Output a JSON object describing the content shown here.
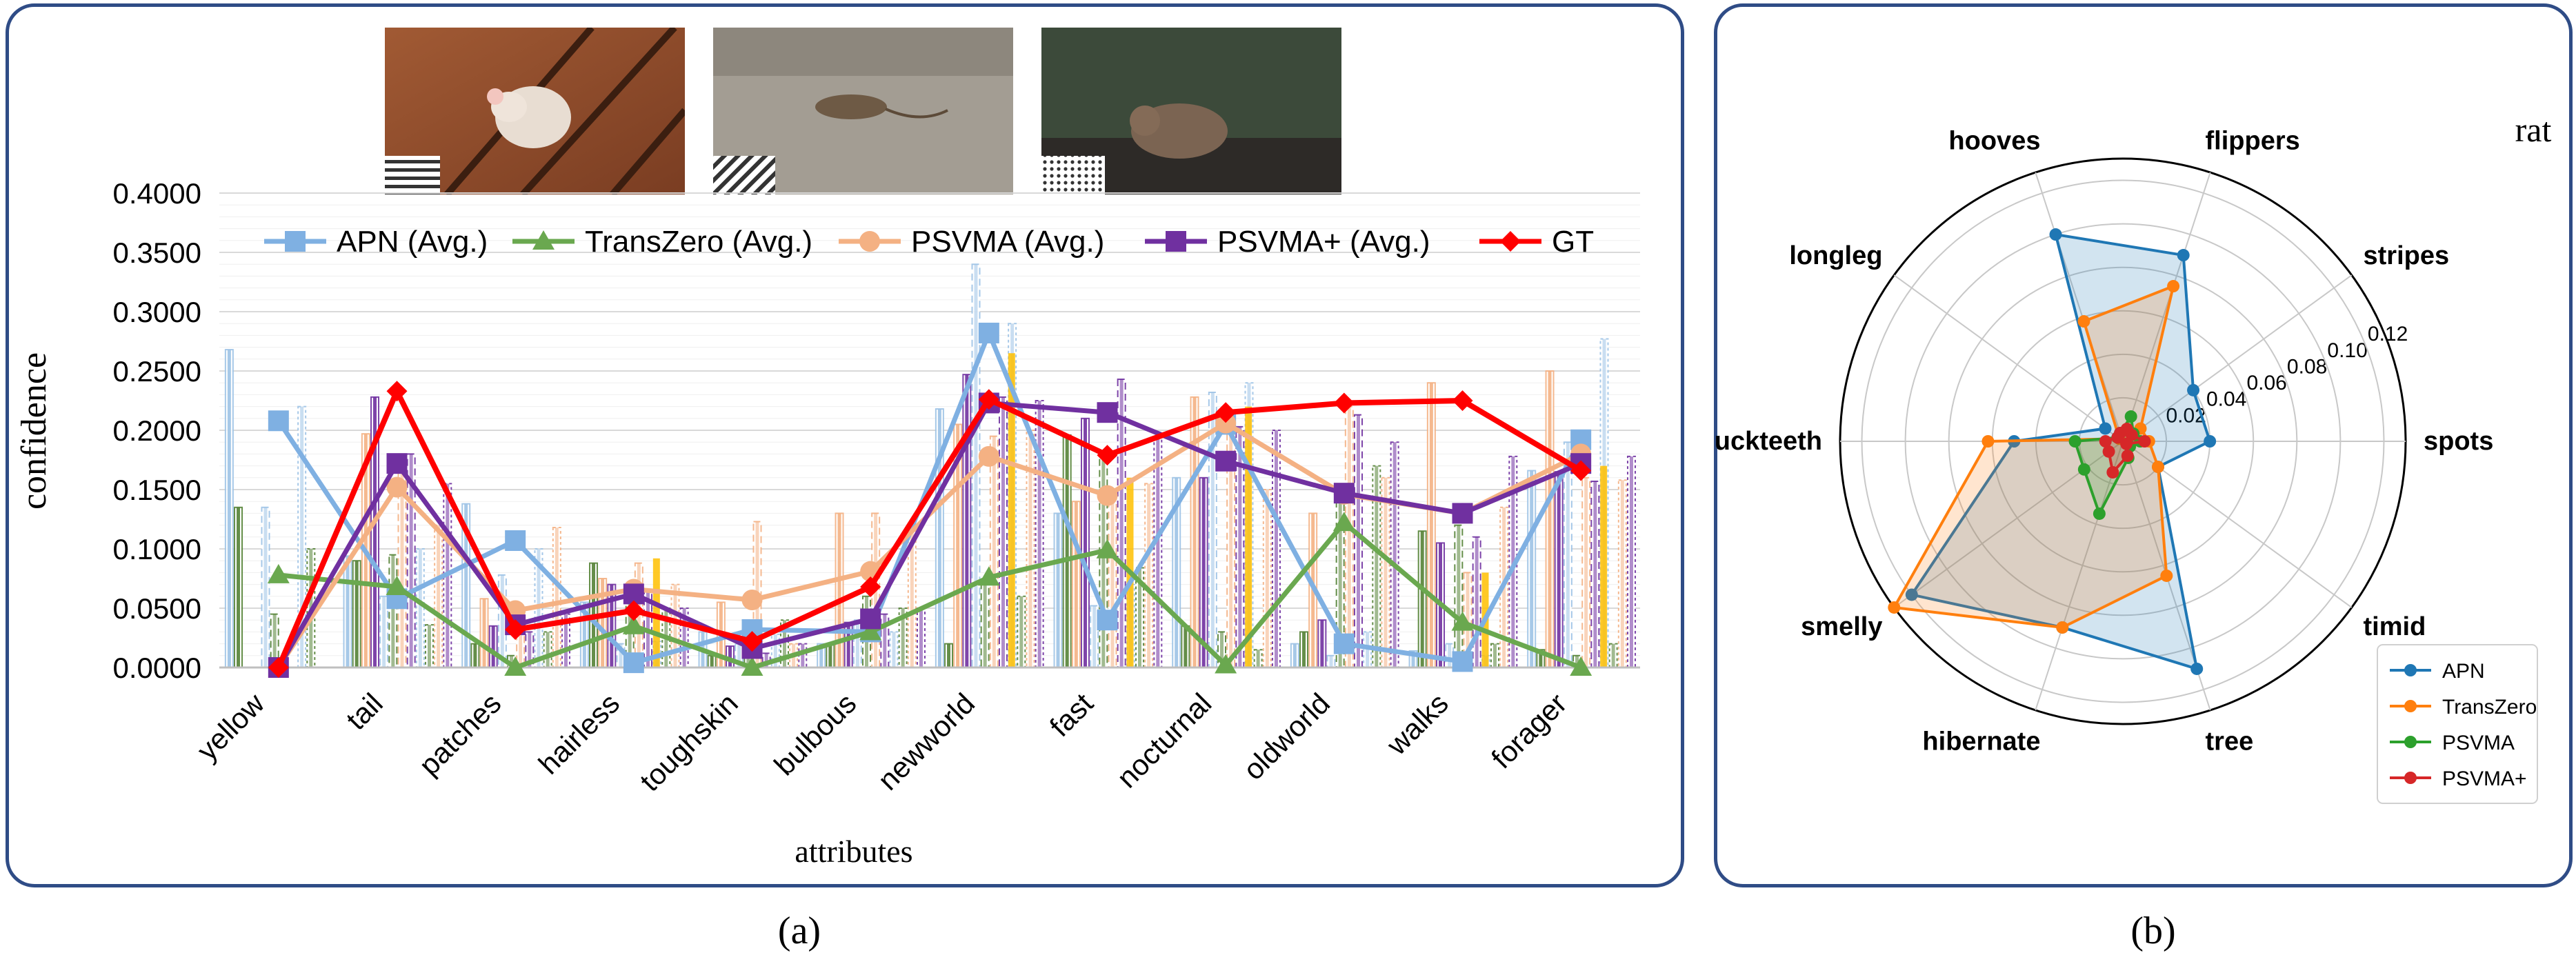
{
  "captions": {
    "a": "(a)",
    "b": "(b)"
  },
  "chart_data": [
    {
      "type": "line",
      "xlabel": "attributes",
      "ylabel": "confidence",
      "ylim": [
        0,
        0.4
      ],
      "yticks": [
        "0.0000",
        "0.0500",
        "0.1000",
        "0.1500",
        "0.2000",
        "0.2500",
        "0.3000",
        "0.3500",
        "0.4000"
      ],
      "categories": [
        "yellow",
        "tail",
        "patches",
        "hairless",
        "toughskin",
        "bulbous",
        "newworld",
        "fast",
        "nocturnal",
        "oldworld",
        "walks",
        "forager"
      ],
      "legend_position": "top",
      "series": [
        {
          "name": "APN (Avg.)",
          "color": "#7fb0e2",
          "marker": "square",
          "values": [
            0.208,
            0.058,
            0.107,
            0.004,
            0.032,
            0.03,
            0.282,
            0.04,
            0.205,
            0.02,
            0.005,
            0.192
          ]
        },
        {
          "name": "TransZero (Avg.)",
          "color": "#6aa84f",
          "marker": "triangle",
          "values": [
            0.078,
            0.068,
            0.0,
            0.035,
            0.0,
            0.03,
            0.076,
            0.099,
            0.002,
            0.122,
            0.038,
            0.0
          ]
        },
        {
          "name": "PSVMA (Avg.)",
          "color": "#f4b183",
          "marker": "circle",
          "values": [
            0.0,
            0.152,
            0.048,
            0.066,
            0.057,
            0.081,
            0.178,
            0.145,
            0.206,
            0.146,
            0.13,
            0.18
          ]
        },
        {
          "name": "PSVMA+ (Avg.)",
          "color": "#7030a0",
          "marker": "square",
          "values": [
            0.0,
            0.172,
            0.036,
            0.062,
            0.016,
            0.041,
            0.223,
            0.215,
            0.174,
            0.147,
            0.13,
            0.172
          ]
        },
        {
          "name": "GT",
          "color": "#ff0000",
          "marker": "diamond",
          "values": [
            0.0,
            0.233,
            0.032,
            0.048,
            0.022,
            0.068,
            0.226,
            0.179,
            0.215,
            0.223,
            0.225,
            0.166
          ]
        }
      ],
      "bar_series": [
        {
          "name": "APN",
          "color": "#9dc3e6",
          "b1": [
            0.268,
            0.094,
            0.138,
            0.055,
            0.03,
            0.02,
            0.218,
            0.13,
            0.16,
            0.02,
            0.014,
            0.166
          ],
          "b2": [
            0.135,
            0.06,
            0.078,
            0.02,
            0.02,
            0.04,
            0.34,
            0.052,
            0.232,
            0.01,
            0.02,
            0.19
          ],
          "b3": [
            0.22,
            0.1,
            0.1,
            0.022,
            0.028,
            0.03,
            0.29,
            0.07,
            0.24,
            0.03,
            0.01,
            0.277
          ]
        },
        {
          "name": "TransZero",
          "color": "#548235",
          "b1": [
            0.135,
            0.09,
            0.02,
            0.088,
            0.01,
            0.02,
            0.02,
            0.196,
            0.035,
            0.03,
            0.115,
            0.015
          ],
          "b2": [
            0.045,
            0.095,
            0.01,
            0.062,
            0.012,
            0.06,
            0.07,
            0.18,
            0.03,
            0.15,
            0.12,
            0.01
          ],
          "b3": [
            0.1,
            0.036,
            0.03,
            0.05,
            0.04,
            0.05,
            0.06,
            0.084,
            0.015,
            0.17,
            0.02,
            0.02
          ]
        },
        {
          "name": "PSVMA",
          "color": "#f4b183",
          "b1": [
            0.0,
            0.197,
            0.058,
            0.075,
            0.055,
            0.13,
            0.205,
            0.14,
            0.228,
            0.13,
            0.24,
            0.25
          ],
          "b2": [
            0.0,
            0.18,
            0.048,
            0.088,
            0.123,
            0.13,
            0.195,
            0.15,
            0.205,
            0.22,
            0.08,
            0.16
          ],
          "b3": [
            0.0,
            0.12,
            0.118,
            0.07,
            0.02,
            0.115,
            0.2,
            0.155,
            0.15,
            0.16,
            0.135,
            0.158
          ]
        },
        {
          "name": "PSVMA+",
          "color": "#7030a0",
          "b1": [
            0.0,
            0.228,
            0.035,
            0.07,
            0.018,
            0.038,
            0.247,
            0.21,
            0.16,
            0.04,
            0.105,
            0.165
          ],
          "b2": [
            0.0,
            0.18,
            0.03,
            0.065,
            0.012,
            0.045,
            0.228,
            0.243,
            0.203,
            0.213,
            0.11,
            0.157
          ],
          "b3": [
            0.0,
            0.155,
            0.045,
            0.05,
            0.02,
            0.05,
            0.225,
            0.195,
            0.2,
            0.19,
            0.178,
            0.178
          ]
        }
      ],
      "bar_accent": [
        {
          "color": "#ffc000",
          "values": [
            0,
            0.0,
            0,
            0.092,
            0,
            0,
            0.265,
            0.16,
            0.22,
            0,
            0.08,
            0.17
          ]
        }
      ]
    },
    {
      "type": "radar",
      "title": "rat",
      "categories": [
        "spots",
        "stripes",
        "flippers",
        "hooves",
        "longleg",
        "buckteeth",
        "smelly",
        "hibernate",
        "tree",
        "timid"
      ],
      "rlim": [
        0,
        0.13
      ],
      "rticks": [
        "0.02",
        "0.04",
        "0.06",
        "0.08",
        "0.10",
        "0.12"
      ],
      "legend_position": "bottom-right",
      "series": [
        {
          "name": "APN",
          "color": "#1f77b4",
          "values": [
            0.04,
            0.04,
            0.09,
            0.1,
            0.01,
            0.05,
            0.12,
            0.09,
            0.11,
            0.02
          ]
        },
        {
          "name": "TransZero",
          "color": "#ff7f0e",
          "values": [
            0.012,
            0.01,
            0.075,
            0.058,
            0.002,
            0.062,
            0.13,
            0.09,
            0.065,
            0.02
          ]
        },
        {
          "name": "PSVMA",
          "color": "#2ca02c",
          "values": [
            0.008,
            0.006,
            0.012,
            0.004,
            0.003,
            0.022,
            0.022,
            0.035,
            0.008,
            0.004
          ]
        },
        {
          "name": "PSVMA+",
          "color": "#d62728",
          "values": [
            0.01,
            0.005,
            0.006,
            0.004,
            0.003,
            0.008,
            0.008,
            0.015,
            0.007,
            0.002
          ]
        }
      ]
    }
  ]
}
